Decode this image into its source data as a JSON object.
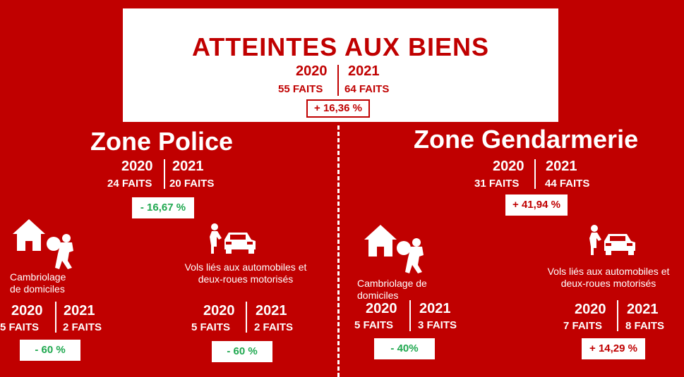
{
  "header": {
    "title": "ATTEINTES AUX BIENS",
    "year_a": "2020",
    "year_b": "2021",
    "faits_a": "55 FAITS",
    "faits_b": "64 FAITS",
    "change": "+ 16,36 %"
  },
  "police": {
    "title": "Zone Police",
    "year_a": "2020",
    "year_b": "2021",
    "faits_a": "24 FAITS",
    "faits_b": "20 FAITS",
    "change": "- 16,67 %",
    "burglary": {
      "label_line1": "Cambriolage",
      "label_line2": "de domiciles",
      "year_a": "2020",
      "year_b": "2021",
      "faits_a": "5 FAITS",
      "faits_b": "2 FAITS",
      "change": "- 60 %"
    },
    "vehicles": {
      "label_line1": "Vols liés aux automobiles et",
      "label_line2": "deux-roues motorisés",
      "year_a": "2020",
      "year_b": "2021",
      "faits_a": "5 FAITS",
      "faits_b": "2 FAITS",
      "change": "- 60 %"
    }
  },
  "gendarmerie": {
    "title": "Zone Gendarmerie",
    "year_a": "2020",
    "year_b": "2021",
    "faits_a": "31 FAITS",
    "faits_b": "44 FAITS",
    "change": "+ 41,94 %",
    "burglary": {
      "label_line1": "Cambriolage de",
      "label_line2": "domiciles",
      "year_a": "2020",
      "year_b": "2021",
      "faits_a": "5 FAITS",
      "faits_b": "3 FAITS",
      "change": "- 40%"
    },
    "vehicles": {
      "label_line1": "Vols liés aux automobiles et",
      "label_line2": "deux-roues motorisés",
      "year_a": "2020",
      "year_b": "2021",
      "faits_a": "7 FAITS",
      "faits_b": "8 FAITS",
      "change": "+ 14,29 %"
    }
  },
  "icons": [
    "house-icon",
    "burglar-icon",
    "car-icon",
    "person-icon"
  ],
  "colors": {
    "background": "#c00000",
    "increase": "#c00000",
    "decrease": "#1fa84f"
  }
}
